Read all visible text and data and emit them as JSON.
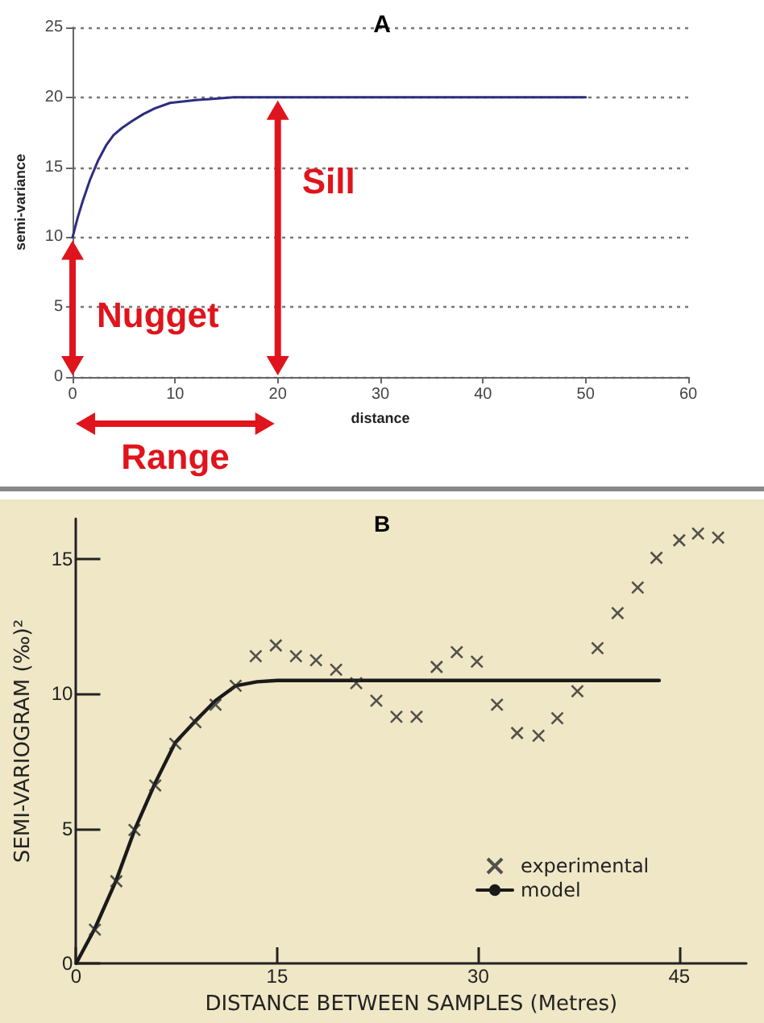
{
  "chart_data": [
    {
      "type": "line",
      "title": "A",
      "xlabel": "distance",
      "ylabel": "semi-variance",
      "xlim": [
        0,
        60
      ],
      "ylim": [
        0,
        25
      ],
      "xticks": [
        0,
        10,
        20,
        30,
        40,
        50,
        60
      ],
      "yticks": [
        0,
        5,
        10,
        15,
        20,
        25
      ],
      "grid": "y",
      "marker": "none",
      "line_style": "solid",
      "series": [
        {
          "color": "#2b2e7e",
          "x": [
            0,
            0.5,
            1,
            1.7,
            2.5,
            3.3,
            4,
            4.8,
            5.8,
            6.9,
            8,
            9.5,
            12,
            15.7,
            20,
            50
          ],
          "values": [
            10,
            11.4,
            12.6,
            14.1,
            15.5,
            16.6,
            17.3,
            17.8,
            18.3,
            18.8,
            19.2,
            19.6,
            19.8,
            20,
            20,
            20
          ]
        }
      ],
      "annotations": [
        {
          "text": "Nugget",
          "x": 0,
          "y": 10
        },
        {
          "text": "Sill",
          "x": 20,
          "y": 20
        },
        "Range"
      ]
    },
    {
      "type": "scatter",
      "title": "B",
      "xlabel": "DISTANCE BETWEEN SAMPLES (Metres)",
      "ylabel": "SEMI-VARIOGRAM (‰)²",
      "xlim": [
        0,
        50
      ],
      "ylim": [
        0,
        16.5
      ],
      "xticks": [
        0,
        15,
        30,
        45
      ],
      "yticks": [
        0,
        5,
        10,
        15
      ],
      "grid": false,
      "legend": "bottom right",
      "series": [
        {
          "name": "experimental",
          "marker": "cross",
          "color": "#2a2a2a",
          "x": [
            1.4,
            3.0,
            4.35,
            5.9,
            7.4,
            8.9,
            10.4,
            11.9,
            13.4,
            14.9,
            16.4,
            17.9,
            19.4,
            20.9,
            22.4,
            23.9,
            25.4,
            26.9,
            28.4,
            29.9,
            31.4,
            32.9,
            34.5,
            35.9,
            37.4,
            38.9,
            40.4,
            41.9,
            43.3,
            45.0,
            46.4,
            47.9
          ],
          "values": [
            1.25,
            3.05,
            4.95,
            6.6,
            8.15,
            8.95,
            9.6,
            10.3,
            11.4,
            11.8,
            11.4,
            11.25,
            10.9,
            10.4,
            9.75,
            9.15,
            9.15,
            11.0,
            11.55,
            11.2,
            9.6,
            8.55,
            8.45,
            9.1,
            10.1,
            11.7,
            13.0,
            13.95,
            15.05,
            15.7,
            15.95,
            15.8
          ]
        },
        {
          "name": "model",
          "type": "line",
          "marker": "none",
          "line_style": "solid",
          "color": "#1a1a1a",
          "x": [
            0,
            1.4,
            3,
            4.4,
            5.9,
            7.4,
            8.9,
            10.4,
            11.9,
            13.5,
            15,
            43.5
          ],
          "values": [
            0,
            1.3,
            3.1,
            5,
            6.7,
            8.2,
            9.0,
            9.75,
            10.3,
            10.45,
            10.5,
            10.5
          ]
        }
      ]
    }
  ]
}
